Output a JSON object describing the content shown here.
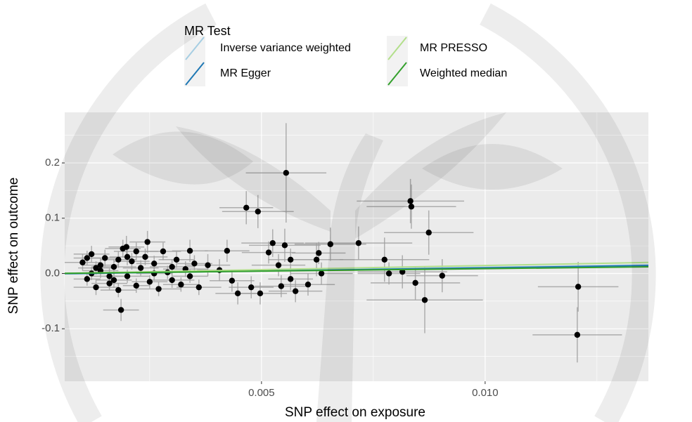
{
  "chart_data": {
    "type": "scatter",
    "xlabel": "SNP effect on exposure",
    "ylabel": "SNP effect on outcome",
    "legend_title": "MR Test",
    "legend_position": "top",
    "grid": true,
    "panel_color": "#ebebeb",
    "point_color": "#000000",
    "errorbar_color": "#9e9e9e",
    "xlim": [
      0.0006,
      0.01365
    ],
    "ylim": [
      -0.195,
      0.2915
    ],
    "xticks": [
      0.005,
      {
        "value": 0.01,
        "label": "0.010"
      }
    ],
    "yticks": [
      0.2,
      0.1,
      {
        "value": 0,
        "label": "0.0"
      },
      -0.1
    ],
    "x_minor_grid": [
      0.0025,
      0.0075,
      0.0125
    ],
    "y_minor_grid": [
      0.25,
      0.15,
      0.05,
      -0.05,
      -0.15
    ],
    "series": [
      {
        "name": "Inverse variance weighted",
        "color": "#a6cee3",
        "x": [
          0.0006,
          0.01365
        ],
        "values": [
          0.0,
          0.0155
        ]
      },
      {
        "name": "MR Egger",
        "color": "#1f78b4",
        "x": [
          0.0006,
          0.01365
        ],
        "values": [
          -0.0005,
          0.0145
        ]
      },
      {
        "name": "MR PRESSO",
        "color": "#b2df8a",
        "x": [
          0.0006,
          0.01365
        ],
        "values": [
          0.0003,
          0.02
        ]
      },
      {
        "name": "Weighted median",
        "color": "#33a02c",
        "x": [
          0.0006,
          0.01365
        ],
        "values": [
          0.0003,
          0.012
        ]
      }
    ],
    "points": {
      "x": [
        0.001,
        0.0011,
        0.0012,
        0.0013,
        0.0014,
        0.0015,
        0.0016,
        0.0017,
        0.0018,
        0.0019,
        0.002,
        0.0021,
        0.0022,
        0.0023,
        0.0024,
        0.0025,
        0.0026,
        0.0027,
        0.0028,
        0.0029,
        0.003,
        0.0031,
        0.0032,
        0.0033,
        0.0034,
        0.0035,
        0.0036,
        0.0012,
        0.0014,
        0.0016,
        0.0018,
        0.0022,
        0.0026,
        0.003,
        0.0011,
        0.0013,
        0.0017,
        0.002,
        0.00555,
        0.00466,
        0.00492,
        0.00525,
        0.00552,
        0.00623,
        0.00654,
        0.00717,
        0.00775,
        0.00785,
        0.00815,
        0.00833,
        0.00835,
        0.00844,
        0.00865,
        0.00874,
        0.00904,
        0.01208,
        0.01206,
        0.00628,
        0.00634,
        0.00565,
        0.00565,
        0.00576,
        0.00477,
        0.00497,
        0.00447,
        0.00434,
        0.00406,
        0.0038,
        0.00423,
        0.00516,
        0.00538,
        0.00604,
        0.00544,
        0.00186,
        0.00245,
        0.00198,
        0.0034
      ],
      "values": [
        0.02,
        -0.01,
        0.035,
        -0.025,
        0.005,
        0.028,
        -0.018,
        0.012,
        -0.03,
        0.045,
        -0.005,
        0.022,
        -0.022,
        0.01,
        0.03,
        -0.015,
        0.018,
        -0.028,
        0.04,
        0.002,
        -0.012,
        0.025,
        -0.02,
        0.008,
        -0.005,
        0.018,
        -0.025,
        0.0,
        0.015,
        -0.005,
        0.025,
        0.04,
        0.0,
        0.012,
        0.028,
        0.01,
        -0.012,
        0.03,
        0.182,
        0.119,
        0.112,
        0.055,
        0.051,
        0.025,
        0.053,
        0.055,
        0.025,
        0.0,
        0.003,
        0.131,
        0.121,
        -0.017,
        -0.048,
        0.074,
        -0.004,
        -0.024,
        -0.111,
        0.037,
        0.0,
        0.025,
        -0.01,
        -0.032,
        -0.025,
        -0.036,
        -0.036,
        -0.013,
        0.006,
        0.015,
        0.041,
        0.038,
        0.015,
        -0.02,
        -0.023,
        -0.066,
        0.057,
        0.048,
        0.041
      ],
      "x_err": [
        0.0004,
        0.0003,
        0.0004,
        0.0005,
        0.0004,
        0.0003,
        0.0004,
        0.0005,
        0.0004,
        0.0004,
        0.0005,
        0.0004,
        0.0003,
        0.0004,
        0.0005,
        0.0004,
        0.0004,
        0.0005,
        0.0004,
        0.0004,
        0.0005,
        0.0004,
        0.0004,
        0.0005,
        0.0004,
        0.0004,
        0.0005,
        0.0003,
        0.0004,
        0.0004,
        0.0004,
        0.0005,
        0.0004,
        0.0005,
        0.0003,
        0.0004,
        0.0004,
        0.0004,
        0.0009,
        0.0006,
        0.0008,
        0.0007,
        0.0008,
        0.0006,
        0.0008,
        0.0012,
        0.001,
        0.0007,
        0.001,
        0.0012,
        0.001,
        0.001,
        0.0013,
        0.001,
        0.0008,
        0.0009,
        0.001,
        0.0006,
        0.0007,
        0.0005,
        0.0005,
        0.0006,
        0.0005,
        0.0006,
        0.0005,
        0.0005,
        0.0005,
        0.0005,
        0.0005,
        0.0006,
        0.0006,
        0.0006,
        0.0006,
        0.0004,
        0.0004,
        0.0004,
        0.0004
      ],
      "y_err": [
        0.015,
        0.012,
        0.015,
        0.014,
        0.013,
        0.015,
        0.012,
        0.014,
        0.013,
        0.016,
        0.012,
        0.015,
        0.013,
        0.014,
        0.015,
        0.012,
        0.014,
        0.013,
        0.016,
        0.012,
        0.014,
        0.015,
        0.013,
        0.014,
        0.012,
        0.015,
        0.014,
        0.012,
        0.013,
        0.014,
        0.015,
        0.016,
        0.013,
        0.014,
        0.013,
        0.012,
        0.014,
        0.015,
        0.09,
        0.03,
        0.03,
        0.025,
        0.03,
        0.03,
        0.03,
        0.03,
        0.04,
        0.02,
        0.03,
        0.04,
        0.04,
        0.03,
        0.06,
        0.04,
        0.03,
        0.045,
        0.05,
        0.02,
        0.02,
        0.02,
        0.02,
        0.02,
        0.02,
        0.02,
        0.02,
        0.02,
        0.02,
        0.02,
        0.02,
        0.02,
        0.02,
        0.02,
        0.02,
        0.02,
        0.02,
        0.02,
        0.02
      ]
    }
  }
}
